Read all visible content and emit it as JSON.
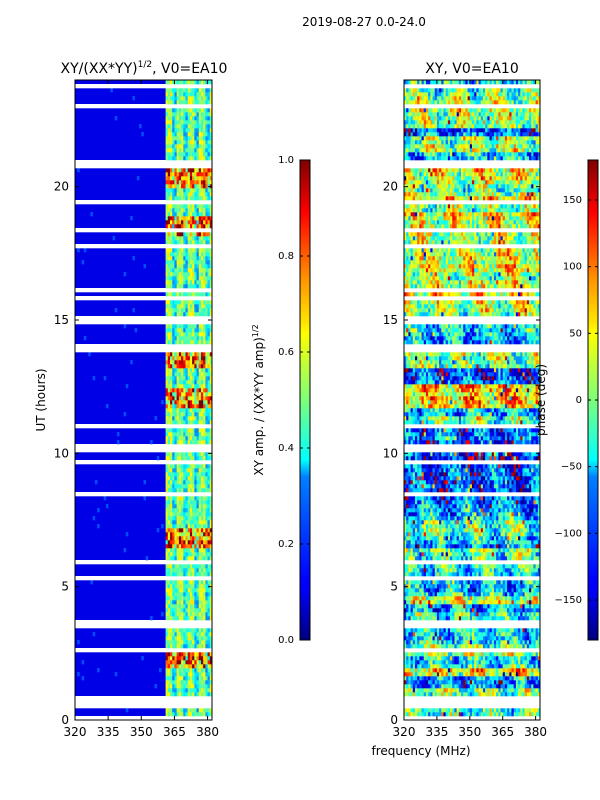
{
  "figure": {
    "suptitle": "2019-08-27 0.0-24.0",
    "xlabel": "frequency (MHz)"
  },
  "chart_data": [
    {
      "type": "heatmap",
      "title_main": "XY/(XX*YY)",
      "title_sup": "1/2",
      "title_rest": ", V0=EA10",
      "xlabel": "",
      "ylabel": "UT (hours)",
      "x_range": [
        320,
        382
      ],
      "y_range": [
        0,
        24
      ],
      "x_ticks": [
        "320",
        "335",
        "350",
        "365",
        "380"
      ],
      "x_tick_values": [
        320,
        335,
        350,
        365,
        380
      ],
      "y_ticks": [
        "0",
        "5",
        "10",
        "15",
        "20"
      ],
      "y_tick_values": [
        0,
        5,
        10,
        15,
        20
      ],
      "colormap": "jet",
      "colorbar": {
        "label_main": "XY amp. / (XX*YY amp)",
        "label_sup": "1/2",
        "range": [
          0.0,
          1.0
        ],
        "ticks": [
          "0.0",
          "0.2",
          "0.4",
          "0.6",
          "0.8",
          "1.0"
        ],
        "tick_values": [
          0.0,
          0.2,
          0.4,
          0.6,
          0.8,
          1.0
        ]
      },
      "flagged_gaps_hours": [
        3.45,
        10.05,
        13.95,
        20.75
      ],
      "bright_band_MHz": [
        361,
        382
      ],
      "bright_rows_hours": [
        2.4,
        6.8,
        12.0,
        13.5,
        18.5,
        20.3
      ],
      "description_values": "Low amplitude (~0.05) below 361 MHz; 0.2-0.9 in 361-382 MHz band"
    },
    {
      "type": "heatmap",
      "title_main": "XY, V0=EA10",
      "xlabel": "",
      "ylabel": "",
      "x_range": [
        320,
        382
      ],
      "y_range": [
        0,
        24
      ],
      "x_ticks": [
        "320",
        "335",
        "350",
        "365",
        "380"
      ],
      "x_tick_values": [
        320,
        335,
        350,
        365,
        380
      ],
      "y_ticks": [
        "0",
        "5",
        "10",
        "15",
        "20"
      ],
      "y_tick_values": [
        0,
        5,
        10,
        15,
        20
      ],
      "colormap": "jet",
      "colorbar": {
        "label_main": "phase (deg)",
        "range": [
          -180,
          180
        ],
        "ticks": [
          "−150",
          "−100",
          "−50",
          "0",
          "50",
          "100",
          "150"
        ],
        "tick_values": [
          -150,
          -100,
          -50,
          0,
          50,
          100,
          150
        ]
      },
      "flagged_gaps_hours": [
        3.45,
        10.05,
        13.95,
        20.75
      ],
      "description_values": "Phase spread across -180 to 180 deg, noisy banded structure"
    }
  ]
}
